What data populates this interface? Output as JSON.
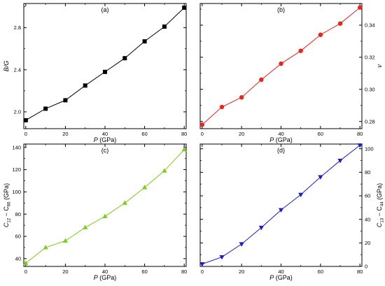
{
  "chart_data": [
    {
      "type": "line",
      "panel_label": "(a)",
      "xlabel_var": "P",
      "xlabel_unit": " (GPa)",
      "ylabel_main": "B/G",
      "ylabel_sub": "",
      "ylabel_tail": "",
      "y_axis_side": "left",
      "x_ticks": [
        0,
        20,
        40,
        60,
        80
      ],
      "y_ticks": [
        2.0,
        2.4,
        2.8
      ],
      "y_tick_decimals": 1,
      "xlim": [
        -1,
        81
      ],
      "ylim": [
        1.84,
        3.03
      ],
      "marker": "square",
      "color": "#000000",
      "x": [
        0,
        10,
        20,
        30,
        40,
        50,
        60,
        70,
        80
      ],
      "y": [
        1.92,
        2.03,
        2.11,
        2.25,
        2.38,
        2.51,
        2.67,
        2.81,
        2.99
      ]
    },
    {
      "type": "line",
      "panel_label": "(b)",
      "xlabel_var": "P",
      "xlabel_unit": " (GPa)",
      "ylabel_main": "ν",
      "ylabel_sub": "",
      "ylabel_tail": "",
      "y_axis_side": "right",
      "x_ticks": [
        0,
        20,
        40,
        60,
        80
      ],
      "y_ticks": [
        0.28,
        0.3,
        0.32,
        0.34
      ],
      "y_tick_decimals": 2,
      "xlim": [
        -1,
        81
      ],
      "ylim": [
        0.2755,
        0.3535
      ],
      "marker": "circle",
      "color": "#e8251c",
      "x": [
        0,
        10,
        20,
        30,
        40,
        50,
        60,
        70,
        80
      ],
      "y": [
        0.278,
        0.289,
        0.295,
        0.306,
        0.316,
        0.324,
        0.334,
        0.341,
        0.351
      ]
    },
    {
      "type": "line",
      "panel_label": "(c)",
      "xlabel_var": "P",
      "xlabel_unit": " (GPa)",
      "ylabel_main": "C",
      "ylabel_sub": "12",
      "ylabel_tail": " − C",
      "ylabel_sub2": "66",
      "ylabel_unit": " (GPa)",
      "y_axis_side": "left",
      "x_ticks": [
        0,
        20,
        40,
        60,
        80
      ],
      "y_ticks": [
        40,
        60,
        80,
        100,
        120,
        140
      ],
      "y_tick_decimals": 0,
      "xlim": [
        -1,
        81
      ],
      "ylim": [
        33,
        143
      ],
      "marker": "triangle-up",
      "color": "#7ccc1c",
      "x": [
        0,
        10,
        20,
        30,
        40,
        50,
        60,
        70,
        80
      ],
      "y": [
        36,
        50,
        56,
        68,
        78,
        90,
        104,
        119,
        138
      ]
    },
    {
      "type": "line",
      "panel_label": "(d)",
      "xlabel_var": "P",
      "xlabel_unit": " (GPa)",
      "ylabel_main": "C",
      "ylabel_sub": "13",
      "ylabel_tail": " − C",
      "ylabel_sub2": "44",
      "ylabel_unit": " (GPa)",
      "y_axis_side": "right",
      "x_ticks": [
        0,
        20,
        40,
        60,
        80
      ],
      "y_ticks": [
        0,
        20,
        40,
        60,
        80,
        100
      ],
      "y_tick_decimals": 0,
      "xlim": [
        -1,
        81
      ],
      "ylim": [
        0,
        104
      ],
      "marker": "triangle-down",
      "color": "#1c1ccc",
      "x": [
        0,
        10,
        20,
        30,
        40,
        50,
        60,
        70,
        80
      ],
      "y": [
        2,
        8,
        19,
        33,
        48,
        61,
        76,
        90,
        103
      ]
    }
  ]
}
